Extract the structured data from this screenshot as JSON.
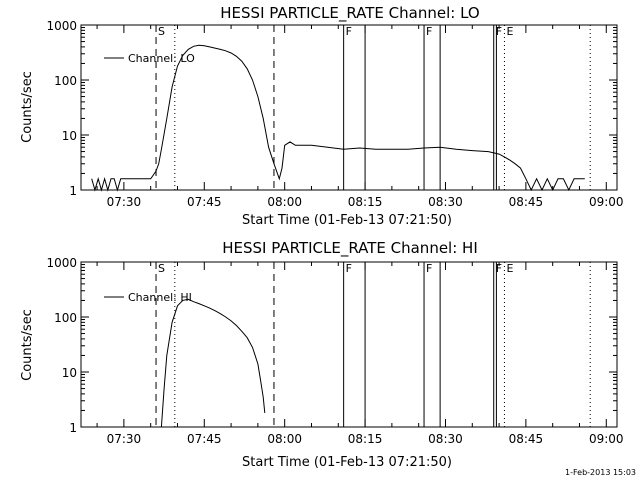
{
  "footer": {
    "timestamp": "1-Feb-2013 15:03"
  },
  "chart_data": [
    {
      "type": "line",
      "title": "HESSI PARTICLE_RATE Channel: LO",
      "xlabel": "Start Time (01-Feb-13 07:21:50)",
      "ylabel": "Counts/sec",
      "yscale": "log",
      "xlim": [
        "07:22",
        "09:02"
      ],
      "ylim": [
        1,
        1000
      ],
      "x_ticks": [
        "07:30",
        "07:45",
        "08:00",
        "08:15",
        "08:30",
        "08:45",
        "09:00"
      ],
      "y_ticks": [
        "1",
        "10",
        "100",
        "1000"
      ],
      "legend": {
        "position": "top-left",
        "entries": [
          "Channel: LO"
        ]
      },
      "markers": [
        {
          "label": "S",
          "time": "07:36",
          "style": "dashed"
        },
        {
          "label": "",
          "time": "07:39.5",
          "style": "dotted"
        },
        {
          "label": "",
          "time": "07:58",
          "style": "dashed"
        },
        {
          "label": "F",
          "time": "08:11",
          "style": "solid"
        },
        {
          "label": "",
          "time": "08:15",
          "style": "solid"
        },
        {
          "label": "F",
          "time": "08:26",
          "style": "solid"
        },
        {
          "label": "",
          "time": "08:29",
          "style": "solid"
        },
        {
          "label": "F",
          "time": "08:39",
          "style": "solid"
        },
        {
          "label": "",
          "time": "08:39.5",
          "style": "solid"
        },
        {
          "label": "E",
          "time": "08:41",
          "style": "dotted"
        },
        {
          "label": "",
          "time": "08:57",
          "style": "dotted"
        }
      ],
      "series": [
        {
          "name": "Channel: LO",
          "points": [
            [
              "07:24",
              1.6
            ],
            [
              "07:24.6",
              1.0
            ],
            [
              "07:25.2",
              1.6
            ],
            [
              "07:25.8",
              1.0
            ],
            [
              "07:26.4",
              1.6
            ],
            [
              "07:27",
              1.0
            ],
            [
              "07:27.6",
              1.6
            ],
            [
              "07:28.2",
              1.6
            ],
            [
              "07:28.8",
              1.0
            ],
            [
              "07:29.4",
              1.6
            ],
            [
              "07:30",
              1.6
            ],
            [
              "07:31",
              1.6
            ],
            [
              "07:32",
              1.6
            ],
            [
              "07:33",
              1.6
            ],
            [
              "07:34",
              1.6
            ],
            [
              "07:35",
              1.6
            ],
            [
              "07:36",
              2.2
            ],
            [
              "07:36.5",
              3.0
            ],
            [
              "07:37",
              5.5
            ],
            [
              "07:38",
              20
            ],
            [
              "07:39",
              75
            ],
            [
              "07:40",
              180
            ],
            [
              "07:41",
              280
            ],
            [
              "07:42",
              360
            ],
            [
              "07:43",
              410
            ],
            [
              "07:44",
              430
            ],
            [
              "07:45",
              420
            ],
            [
              "07:46",
              400
            ],
            [
              "07:47",
              380
            ],
            [
              "07:48",
              360
            ],
            [
              "07:49",
              340
            ],
            [
              "07:50",
              310
            ],
            [
              "07:51",
              270
            ],
            [
              "07:52",
              220
            ],
            [
              "07:53",
              160
            ],
            [
              "07:54",
              100
            ],
            [
              "07:55",
              50
            ],
            [
              "07:56",
              20
            ],
            [
              "07:57",
              6
            ],
            [
              "07:58",
              3
            ],
            [
              "07:59",
              1.6
            ],
            [
              "07:59.5",
              2.5
            ],
            [
              "08:00",
              6.5
            ],
            [
              "08:01",
              7.5
            ],
            [
              "08:02",
              6.5
            ],
            [
              "08:05",
              6.5
            ],
            [
              "08:08",
              6
            ],
            [
              "08:11",
              5.5
            ],
            [
              "08:14",
              5.8
            ],
            [
              "08:17",
              5.5
            ],
            [
              "08:20",
              5.5
            ],
            [
              "08:23",
              5.5
            ],
            [
              "08:26",
              5.8
            ],
            [
              "08:29",
              6
            ],
            [
              "08:32",
              5.5
            ],
            [
              "08:35",
              5.2
            ],
            [
              "08:38",
              5.0
            ],
            [
              "08:40",
              4.5
            ],
            [
              "08:41",
              4.0
            ],
            [
              "08:42",
              3.5
            ],
            [
              "08:43",
              3.0
            ],
            [
              "08:44",
              2.5
            ],
            [
              "08:45",
              1.6
            ],
            [
              "08:46",
              1.0
            ],
            [
              "08:47",
              1.6
            ],
            [
              "08:48",
              1.0
            ],
            [
              "08:49",
              1.6
            ],
            [
              "08:50",
              1.0
            ],
            [
              "08:51",
              1.6
            ],
            [
              "08:52",
              1.6
            ],
            [
              "08:53",
              1.0
            ],
            [
              "08:54",
              1.6
            ],
            [
              "08:55",
              1.6
            ],
            [
              "08:56",
              1.6
            ]
          ]
        }
      ]
    },
    {
      "type": "line",
      "title": "HESSI PARTICLE_RATE Channel: HI",
      "xlabel": "Start Time (01-Feb-13 07:21:50)",
      "ylabel": "Counts/sec",
      "yscale": "log",
      "xlim": [
        "07:22",
        "09:02"
      ],
      "ylim": [
        1,
        1000
      ],
      "x_ticks": [
        "07:30",
        "07:45",
        "08:00",
        "08:15",
        "08:30",
        "08:45",
        "09:00"
      ],
      "y_ticks": [
        "1",
        "10",
        "100",
        "1000"
      ],
      "legend": {
        "position": "top-left",
        "entries": [
          "Channel: HI"
        ]
      },
      "markers": [
        {
          "label": "S",
          "time": "07:36",
          "style": "dashed"
        },
        {
          "label": "",
          "time": "07:39.5",
          "style": "dotted"
        },
        {
          "label": "",
          "time": "07:58",
          "style": "dashed"
        },
        {
          "label": "F",
          "time": "08:11",
          "style": "solid"
        },
        {
          "label": "",
          "time": "08:15",
          "style": "solid"
        },
        {
          "label": "F",
          "time": "08:26",
          "style": "solid"
        },
        {
          "label": "",
          "time": "08:29",
          "style": "solid"
        },
        {
          "label": "F",
          "time": "08:39",
          "style": "solid"
        },
        {
          "label": "",
          "time": "08:39.5",
          "style": "solid"
        },
        {
          "label": "E",
          "time": "08:41",
          "style": "dotted"
        },
        {
          "label": "",
          "time": "08:57",
          "style": "dotted"
        }
      ],
      "series": [
        {
          "name": "Channel: HI",
          "points": [
            [
              "07:37",
              1.0
            ],
            [
              "07:37.5",
              5
            ],
            [
              "07:38",
              20
            ],
            [
              "07:39",
              80
            ],
            [
              "07:40",
              160
            ],
            [
              "07:41",
              200
            ],
            [
              "07:42",
              210
            ],
            [
              "07:43",
              190
            ],
            [
              "07:44",
              175
            ],
            [
              "07:45",
              160
            ],
            [
              "07:46",
              145
            ],
            [
              "07:47",
              130
            ],
            [
              "07:48",
              115
            ],
            [
              "07:49",
              100
            ],
            [
              "07:50",
              85
            ],
            [
              "07:51",
              70
            ],
            [
              "07:52",
              55
            ],
            [
              "07:53",
              42
            ],
            [
              "07:54",
              28
            ],
            [
              "07:55",
              14
            ],
            [
              "07:55.5",
              7
            ],
            [
              "07:56",
              3.5
            ],
            [
              "07:56.3",
              1.8
            ]
          ]
        }
      ]
    }
  ]
}
